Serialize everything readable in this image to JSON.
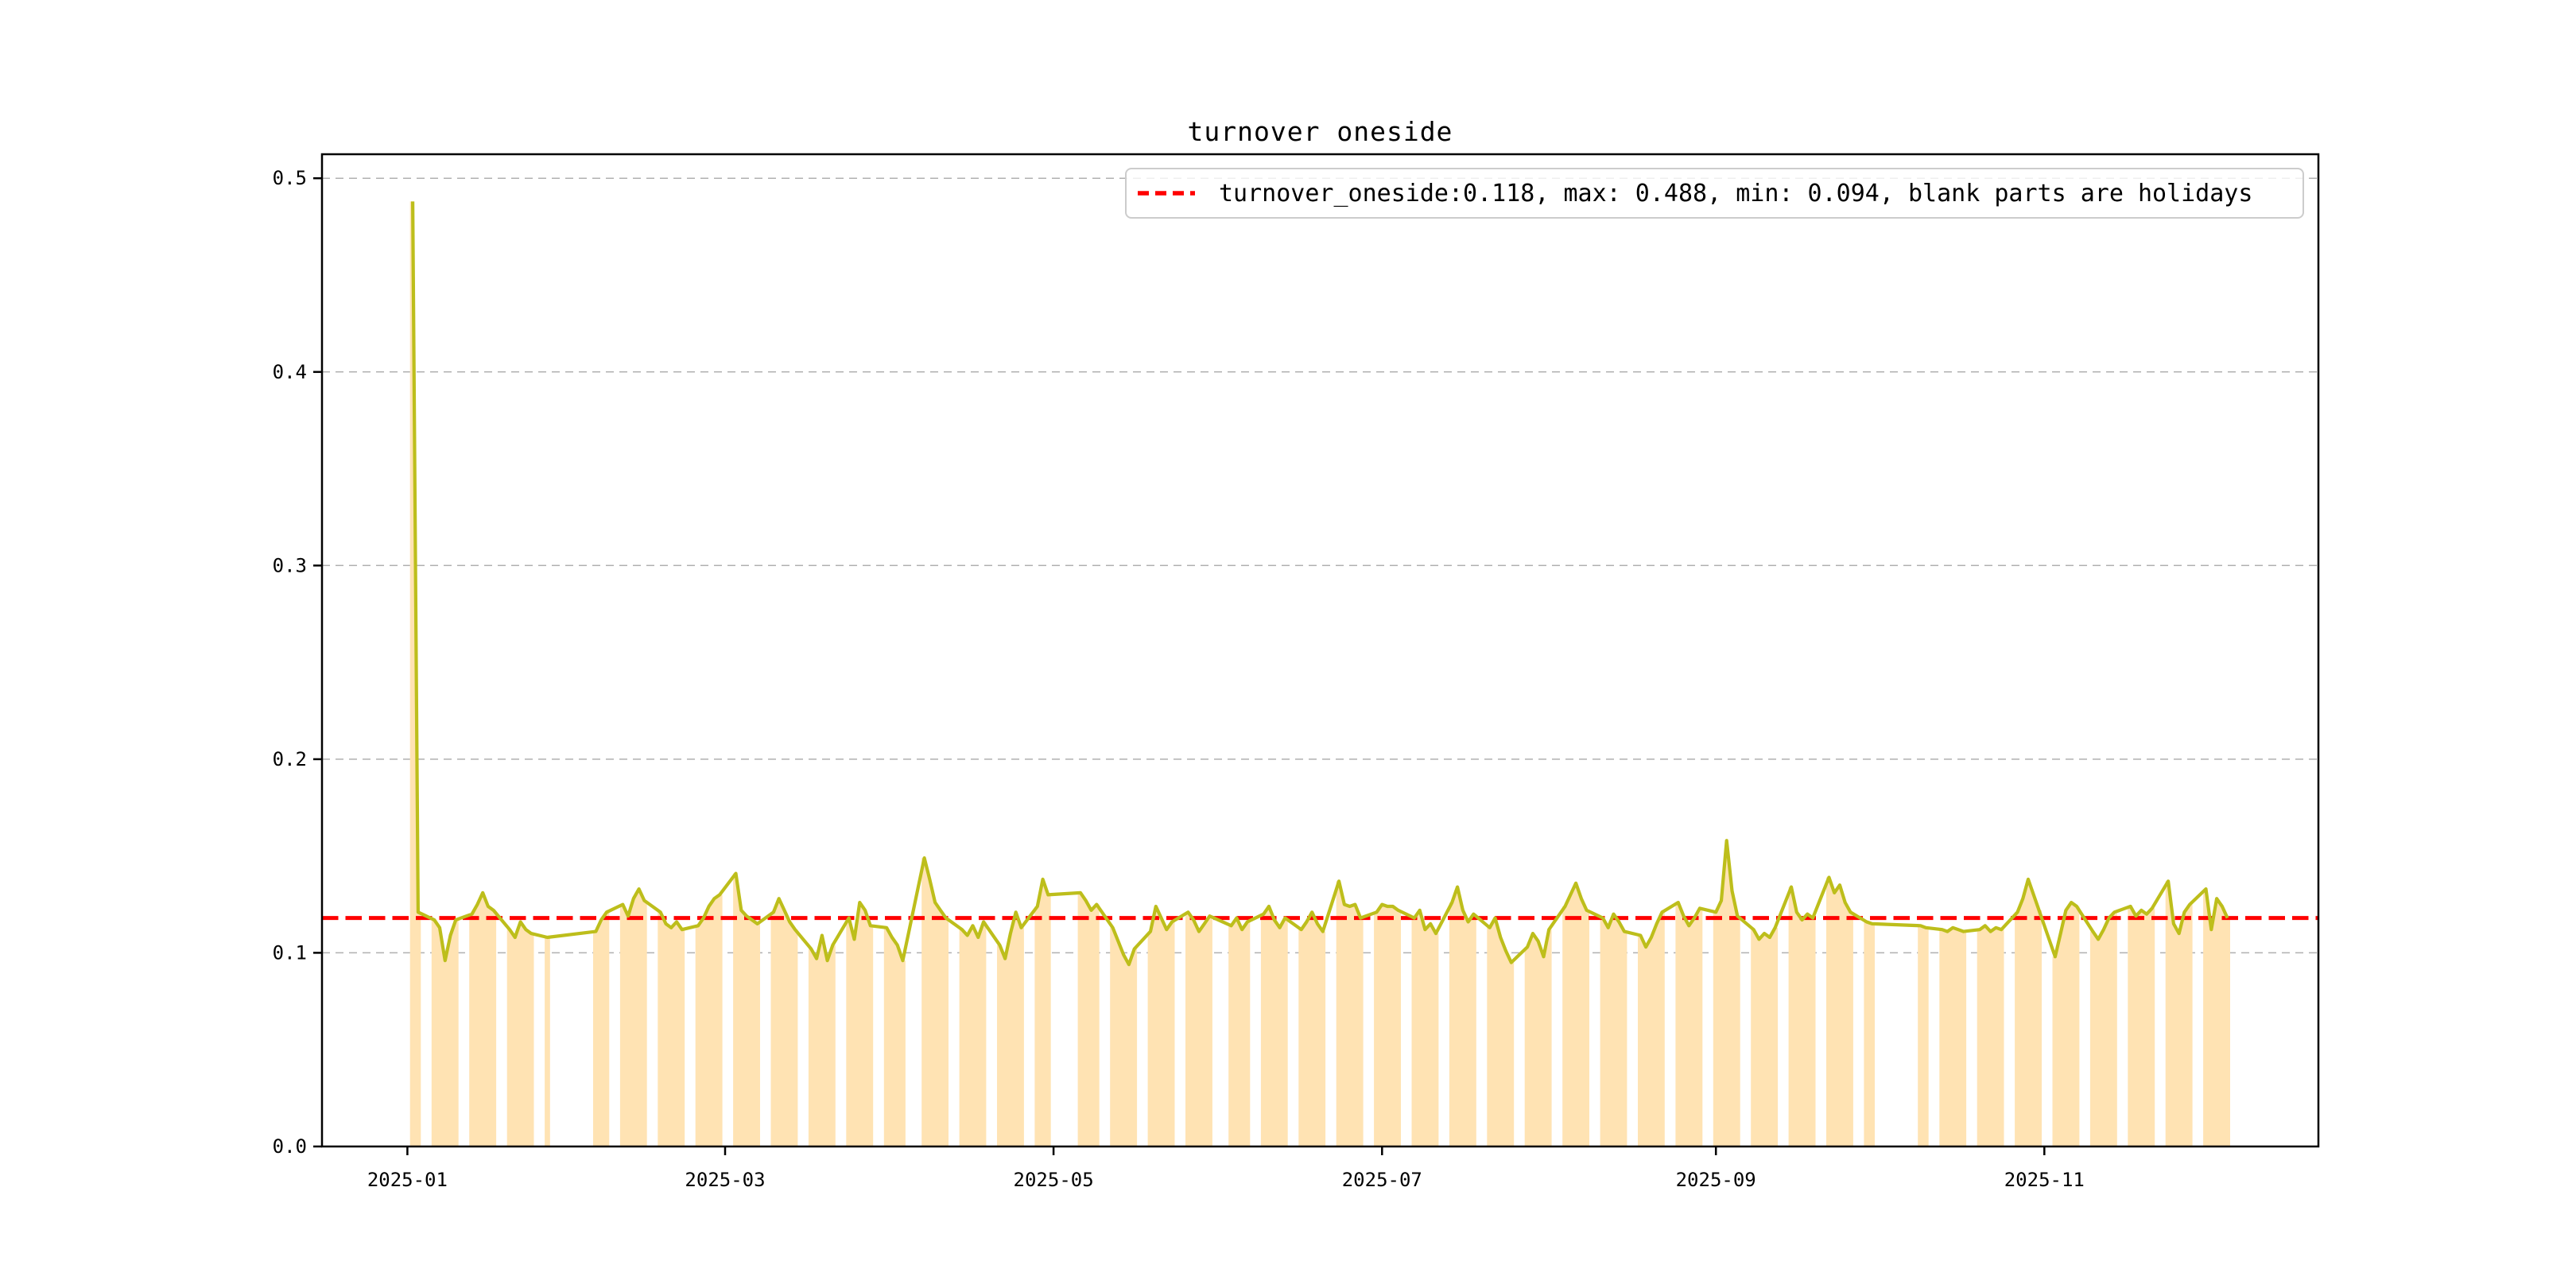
{
  "figure": {
    "background": "#ffffff",
    "title": "turnover oneside"
  },
  "chart_data": {
    "type": "line",
    "title": "turnover oneside",
    "legend_label": "turnover_oneside:0.118, max: 0.488, min: 0.094, blank parts are holidays",
    "legend_position": "upper right",
    "annotation_note": "blank parts are holidays",
    "stats": {
      "turnover_oneside": 0.118,
      "max": 0.488,
      "min": 0.094
    },
    "ref_line": {
      "value": 0.118,
      "color": "#ff0000",
      "style": "dashed"
    },
    "line_color": "#bdbe1b",
    "bar_color": "#ffe3b3",
    "grid_color": "#b0b0b0",
    "ylim": [
      0,
      0.5124
    ],
    "yticks": [
      0,
      0.1,
      0.2,
      0.3,
      0.4,
      0.5
    ],
    "ytick_labels": [
      "0.0",
      "0.1",
      "0.2",
      "0.3",
      "0.4",
      "0.5"
    ],
    "xtick_labels": [
      "2025-01",
      "2025-03",
      "2025-05",
      "2025-07",
      "2025-09",
      "2025-11"
    ],
    "grid": "horizontal-dashed",
    "x_start_date": "2025-01-01",
    "segments": [
      {
        "start": "2025-01-02",
        "values": [
          0.488,
          0.121
        ]
      },
      {
        "start": "2025-01-06",
        "values": [
          0.117,
          0.113,
          0.096,
          0.109,
          0.117
        ]
      },
      {
        "start": "2025-01-13",
        "values": [
          0.12,
          0.125,
          0.131,
          0.124,
          0.122
        ]
      },
      {
        "start": "2025-01-20",
        "values": [
          0.112,
          0.108,
          0.116,
          0.112,
          0.11
        ]
      },
      {
        "start": "2025-01-27",
        "values": [
          0.108
        ]
      },
      {
        "start": "2025-02-05",
        "values": [
          0.111,
          0.117,
          0.121
        ]
      },
      {
        "start": "2025-02-10",
        "values": [
          0.125,
          0.119,
          0.128,
          0.133,
          0.127
        ]
      },
      {
        "start": "2025-02-17",
        "values": [
          0.121,
          0.115,
          0.113,
          0.116,
          0.112
        ]
      },
      {
        "start": "2025-02-24",
        "values": [
          0.114,
          0.118,
          0.124,
          0.128,
          0.13
        ]
      },
      {
        "start": "2025-03-03",
        "values": [
          0.141,
          0.122,
          0.119,
          0.117,
          0.115
        ]
      },
      {
        "start": "2025-03-10",
        "values": [
          0.121,
          0.128,
          0.122,
          0.116,
          0.112
        ]
      },
      {
        "start": "2025-03-17",
        "values": [
          0.102,
          0.097,
          0.109,
          0.096,
          0.104
        ]
      },
      {
        "start": "2025-03-24",
        "values": [
          0.118,
          0.107,
          0.126,
          0.122,
          0.114
        ]
      },
      {
        "start": "2025-03-31",
        "values": [
          0.113,
          0.108,
          0.104,
          0.096
        ]
      },
      {
        "start": "2025-04-07",
        "values": [
          0.149,
          0.138,
          0.126,
          0.122,
          0.118
        ]
      },
      {
        "start": "2025-04-14",
        "values": [
          0.112,
          0.109,
          0.114,
          0.108,
          0.116
        ]
      },
      {
        "start": "2025-04-21",
        "values": [
          0.104,
          0.097,
          0.11,
          0.121,
          0.113
        ]
      },
      {
        "start": "2025-04-28",
        "values": [
          0.124,
          0.138,
          0.13
        ]
      },
      {
        "start": "2025-05-06",
        "values": [
          0.131,
          0.127,
          0.122,
          0.125
        ]
      },
      {
        "start": "2025-05-12",
        "values": [
          0.113,
          0.106,
          0.099,
          0.094,
          0.102
        ]
      },
      {
        "start": "2025-05-19",
        "values": [
          0.111,
          0.124,
          0.118,
          0.112,
          0.116
        ]
      },
      {
        "start": "2025-05-26",
        "values": [
          0.121,
          0.117,
          0.111,
          0.115,
          0.119
        ]
      },
      {
        "start": "2025-06-03",
        "values": [
          0.114,
          0.118,
          0.112,
          0.116
        ]
      },
      {
        "start": "2025-06-09",
        "values": [
          0.12,
          0.124,
          0.117,
          0.113,
          0.118
        ]
      },
      {
        "start": "2025-06-16",
        "values": [
          0.112,
          0.116,
          0.121,
          0.115,
          0.111
        ]
      },
      {
        "start": "2025-06-23",
        "values": [
          0.137,
          0.125,
          0.124,
          0.125,
          0.118
        ]
      },
      {
        "start": "2025-06-30",
        "values": [
          0.121,
          0.125,
          0.124,
          0.124,
          0.122
        ]
      },
      {
        "start": "2025-07-07",
        "values": [
          0.118,
          0.122,
          0.112,
          0.115,
          0.11
        ]
      },
      {
        "start": "2025-07-14",
        "values": [
          0.126,
          0.134,
          0.122,
          0.116,
          0.12
        ]
      },
      {
        "start": "2025-07-21",
        "values": [
          0.113,
          0.118,
          0.108,
          0.101,
          0.095
        ]
      },
      {
        "start": "2025-07-28",
        "values": [
          0.103,
          0.11,
          0.106,
          0.098,
          0.112
        ]
      },
      {
        "start": "2025-08-04",
        "values": [
          0.124,
          0.13,
          0.136,
          0.128,
          0.122
        ]
      },
      {
        "start": "2025-08-11",
        "values": [
          0.118,
          0.113,
          0.12,
          0.116,
          0.111
        ]
      },
      {
        "start": "2025-08-18",
        "values": [
          0.109,
          0.103,
          0.108,
          0.115,
          0.121
        ]
      },
      {
        "start": "2025-08-25",
        "values": [
          0.126,
          0.119,
          0.114,
          0.118,
          0.123
        ]
      },
      {
        "start": "2025-09-01",
        "values": [
          0.121,
          0.127,
          0.158,
          0.132,
          0.119
        ]
      },
      {
        "start": "2025-09-08",
        "values": [
          0.112,
          0.107,
          0.11,
          0.108,
          0.113
        ]
      },
      {
        "start": "2025-09-15",
        "values": [
          0.134,
          0.121,
          0.117,
          0.12,
          0.118
        ]
      },
      {
        "start": "2025-09-22",
        "values": [
          0.139,
          0.131,
          0.135,
          0.126,
          0.121
        ]
      },
      {
        "start": "2025-09-29",
        "values": [
          0.116,
          0.115
        ]
      },
      {
        "start": "2025-10-09",
        "values": [
          0.114,
          0.113
        ]
      },
      {
        "start": "2025-10-13",
        "values": [
          0.112,
          0.111,
          0.113,
          0.112,
          0.111
        ]
      },
      {
        "start": "2025-10-20",
        "values": [
          0.112,
          0.114,
          0.111,
          0.113,
          0.112
        ]
      },
      {
        "start": "2025-10-27",
        "values": [
          0.121,
          0.128,
          0.138,
          0.13,
          0.122
        ]
      },
      {
        "start": "2025-11-03",
        "values": [
          0.098,
          0.11,
          0.122,
          0.126,
          0.124
        ]
      },
      {
        "start": "2025-11-10",
        "values": [
          0.111,
          0.107,
          0.112,
          0.118,
          0.121
        ]
      },
      {
        "start": "2025-11-17",
        "values": [
          0.124,
          0.119,
          0.122,
          0.12,
          0.123
        ]
      },
      {
        "start": "2025-11-24",
        "values": [
          0.137,
          0.115,
          0.11,
          0.121,
          0.125
        ]
      },
      {
        "start": "2025-12-01",
        "values": [
          0.133,
          0.112,
          0.128,
          0.124,
          0.118
        ]
      }
    ]
  }
}
